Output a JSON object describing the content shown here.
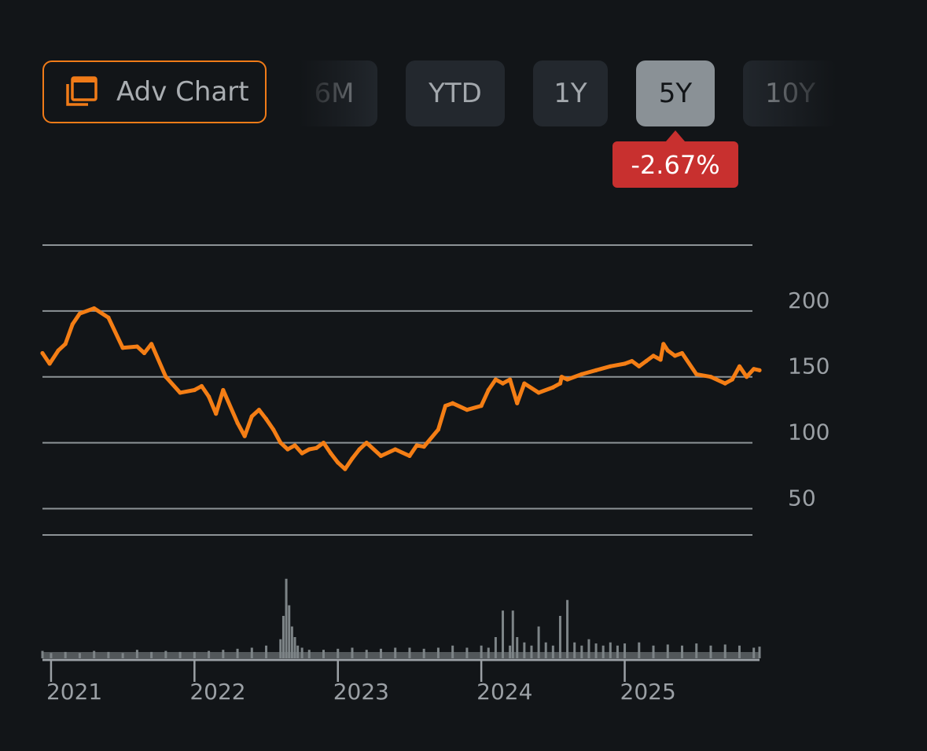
{
  "toolbar": {
    "adv_chart_label": "Adv Chart",
    "adv_chart_icon": "chart-windows-icon",
    "ranges": [
      "6M",
      "YTD",
      "1Y",
      "5Y",
      "10Y"
    ],
    "selected_range": "5Y",
    "change": "-2.67%",
    "change_color": "#c8302f",
    "accent": "#f07b18"
  },
  "chart_data": {
    "type": "line",
    "title": "",
    "xlabel": "",
    "ylabel": "",
    "y_ticks": [
      50,
      100,
      150,
      200
    ],
    "y_tick_labels": [
      "50",
      "100",
      "150",
      "200"
    ],
    "ylim": [
      30,
      250
    ],
    "x_ticks": [
      2021,
      2022,
      2023,
      2024,
      2025
    ],
    "x_tick_labels": [
      "2021",
      "2022",
      "2023",
      "2024",
      "2025"
    ],
    "xlim": [
      2020.94,
      2025.94
    ],
    "grid": true,
    "line_color": "#f47e15",
    "series": [
      {
        "x": [
          2020.94,
          2020.99,
          2021.05,
          2021.1,
          2021.15,
          2021.2,
          2021.3,
          2021.4,
          2021.5,
          2021.6,
          2021.65,
          2021.7,
          2021.8,
          2021.9,
          2022.0,
          2022.05,
          2022.1,
          2022.15,
          2022.2,
          2022.3,
          2022.35,
          2022.4,
          2022.45,
          2022.5,
          2022.55,
          2022.6,
          2022.65,
          2022.7,
          2022.75,
          2022.8,
          2022.85,
          2022.9,
          2022.95,
          2023.0,
          2023.05,
          2023.1,
          2023.15,
          2023.2,
          2023.3,
          2023.4,
          2023.5,
          2023.55,
          2023.6,
          2023.7,
          2023.75,
          2023.8,
          2023.9,
          2024.0,
          2024.05,
          2024.1,
          2024.15,
          2024.2,
          2024.25,
          2024.3,
          2024.4,
          2024.5,
          2024.55,
          2024.56,
          2024.6,
          2024.7,
          2024.8,
          2024.9,
          2025.0,
          2025.05,
          2025.1,
          2025.15,
          2025.2,
          2025.25,
          2025.27,
          2025.3,
          2025.35,
          2025.4,
          2025.5,
          2025.6,
          2025.7,
          2025.75,
          2025.8,
          2025.85,
          2025.9,
          2025.94
        ],
        "y": [
          168,
          160,
          170,
          175,
          190,
          198,
          202,
          195,
          172,
          173,
          168,
          175,
          150,
          138,
          140,
          143,
          135,
          122,
          140,
          115,
          105,
          120,
          125,
          118,
          110,
          100,
          95,
          98,
          92,
          95,
          96,
          100,
          92,
          85,
          80,
          88,
          95,
          100,
          90,
          95,
          90,
          98,
          97,
          110,
          128,
          130,
          125,
          128,
          140,
          148,
          145,
          148,
          130,
          145,
          138,
          142,
          145,
          150,
          148,
          152,
          155,
          158,
          160,
          162,
          158,
          162,
          166,
          163,
          175,
          170,
          166,
          168,
          152,
          150,
          145,
          148,
          158,
          150,
          156,
          155
        ]
      }
    ],
    "volume": {
      "color": "#7d8487",
      "x": [
        2020.94,
        2021.0,
        2021.1,
        2021.2,
        2021.3,
        2021.4,
        2021.5,
        2021.6,
        2021.7,
        2021.8,
        2021.9,
        2022.0,
        2022.1,
        2022.2,
        2022.3,
        2022.4,
        2022.5,
        2022.6,
        2022.62,
        2022.64,
        2022.66,
        2022.68,
        2022.7,
        2022.72,
        2022.75,
        2022.8,
        2022.9,
        2023.0,
        2023.1,
        2023.2,
        2023.3,
        2023.4,
        2023.5,
        2023.6,
        2023.7,
        2023.8,
        2023.9,
        2024.0,
        2024.05,
        2024.1,
        2024.15,
        2024.2,
        2024.22,
        2024.25,
        2024.3,
        2024.35,
        2024.4,
        2024.45,
        2024.5,
        2024.55,
        2024.6,
        2024.65,
        2024.7,
        2024.75,
        2024.8,
        2024.85,
        2024.9,
        2024.95,
        2025.0,
        2025.1,
        2025.2,
        2025.3,
        2025.4,
        2025.5,
        2025.6,
        2025.7,
        2025.8,
        2025.9,
        2025.94
      ],
      "values": [
        0.07,
        0.05,
        0.06,
        0.05,
        0.07,
        0.06,
        0.05,
        0.08,
        0.06,
        0.07,
        0.06,
        0.06,
        0.07,
        0.08,
        0.09,
        0.1,
        0.12,
        0.18,
        0.4,
        0.75,
        0.5,
        0.3,
        0.2,
        0.12,
        0.1,
        0.08,
        0.08,
        0.09,
        0.1,
        0.08,
        0.09,
        0.1,
        0.1,
        0.09,
        0.1,
        0.12,
        0.1,
        0.12,
        0.1,
        0.2,
        0.45,
        0.12,
        0.45,
        0.2,
        0.15,
        0.12,
        0.3,
        0.15,
        0.12,
        0.4,
        0.55,
        0.15,
        0.12,
        0.18,
        0.14,
        0.12,
        0.15,
        0.12,
        0.14,
        0.15,
        0.12,
        0.13,
        0.12,
        0.14,
        0.12,
        0.13,
        0.12,
        0.1,
        0.11
      ]
    }
  }
}
